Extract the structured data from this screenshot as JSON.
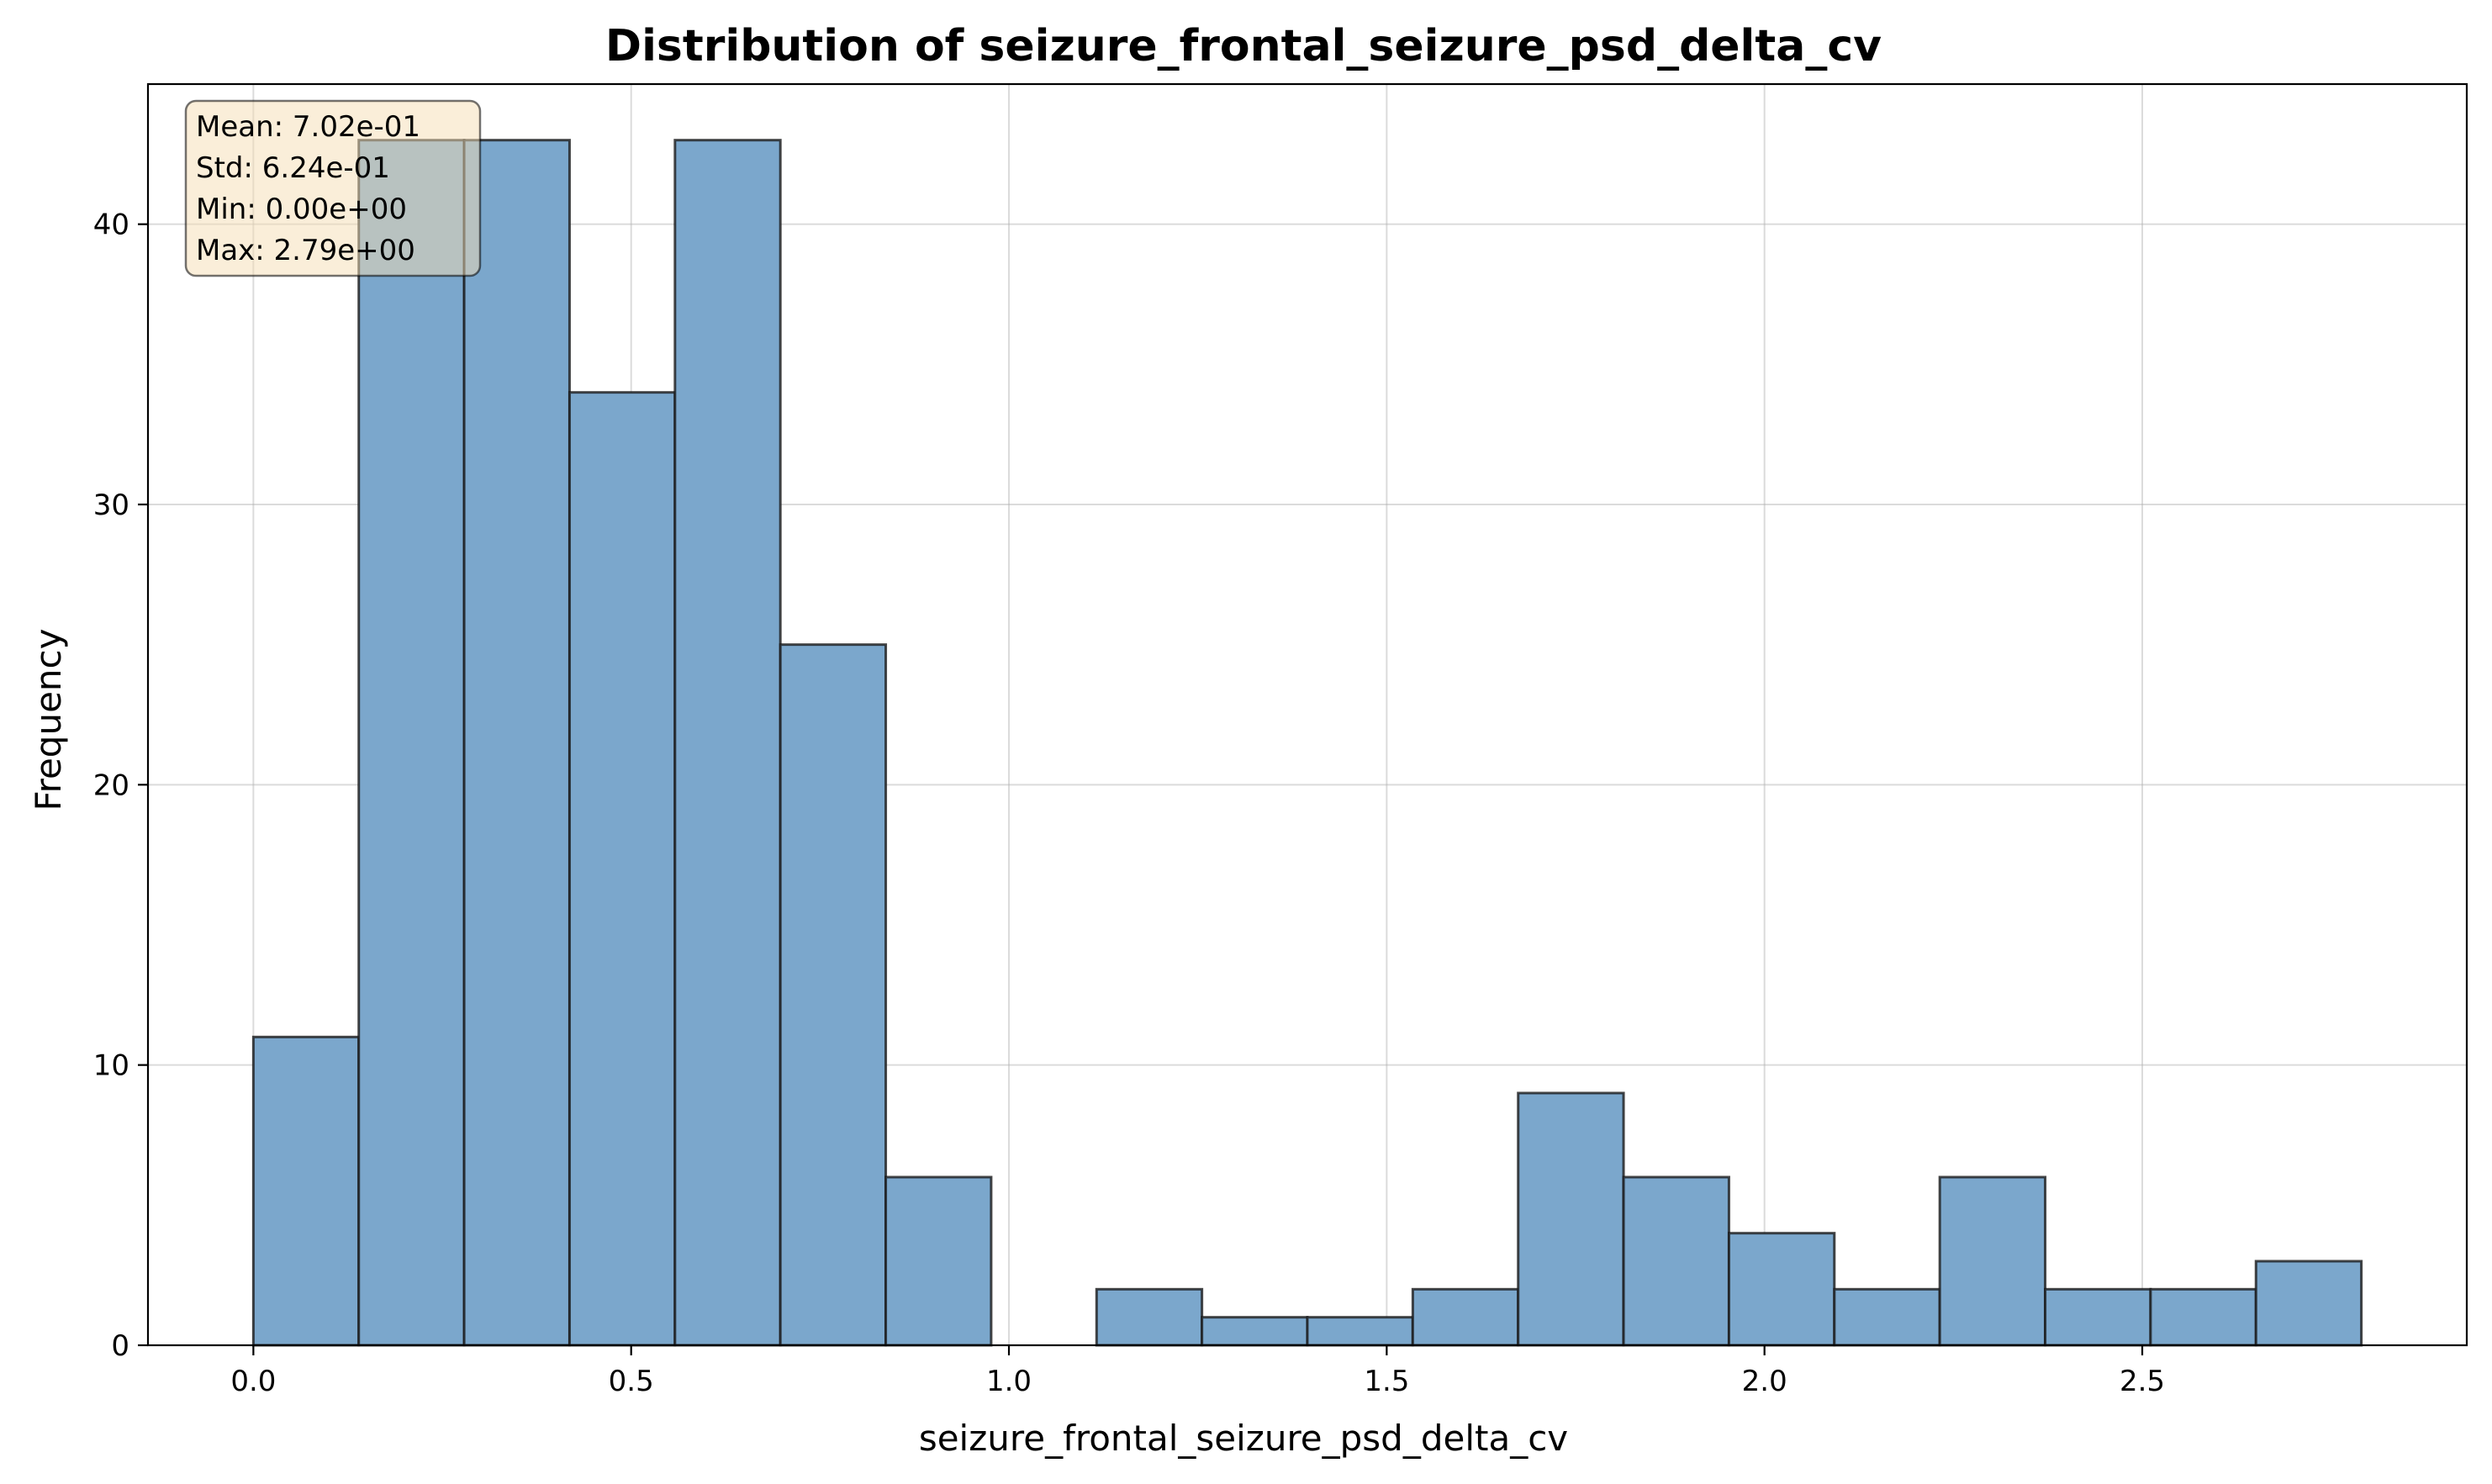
{
  "chart_data": {
    "type": "bar",
    "title": "Distribution of seizure_frontal_seizure_psd_delta_cv",
    "xlabel": "seizure_frontal_seizure_psd_delta_cv",
    "ylabel": "Frequency",
    "bin_edges": [
      0.0,
      0.1395,
      0.279,
      0.4185,
      0.558,
      0.6975,
      0.837,
      0.9765,
      1.116,
      1.2555,
      1.395,
      1.5345,
      1.674,
      1.8135,
      1.953,
      2.0925,
      2.232,
      2.3715,
      2.511,
      2.6505,
      2.79
    ],
    "values": [
      11,
      43,
      43,
      34,
      43,
      25,
      6,
      0,
      2,
      1,
      1,
      2,
      9,
      6,
      4,
      2,
      6,
      2,
      2,
      3
    ],
    "xlim": [
      -0.1395,
      2.9295
    ],
    "ylim": [
      0,
      45
    ],
    "xticks": [
      0.0,
      0.5,
      1.0,
      1.5,
      2.0,
      2.5
    ],
    "xtick_labels": [
      "0.0",
      "0.5",
      "1.0",
      "1.5",
      "2.0",
      "2.5"
    ],
    "yticks": [
      0,
      10,
      20,
      30,
      40
    ],
    "ytick_labels": [
      "0",
      "10",
      "20",
      "30",
      "40"
    ],
    "grid": true,
    "bar_color": "#7ba7cc",
    "edge_color": "#1a1a1a",
    "stats_box": {
      "lines": [
        "Mean: 7.02e-01",
        "Std: 6.24e-01",
        "Min: 0.00e+00",
        "Max: 2.79e+00"
      ],
      "placement": "top-left",
      "background": "#f5deb3"
    }
  }
}
